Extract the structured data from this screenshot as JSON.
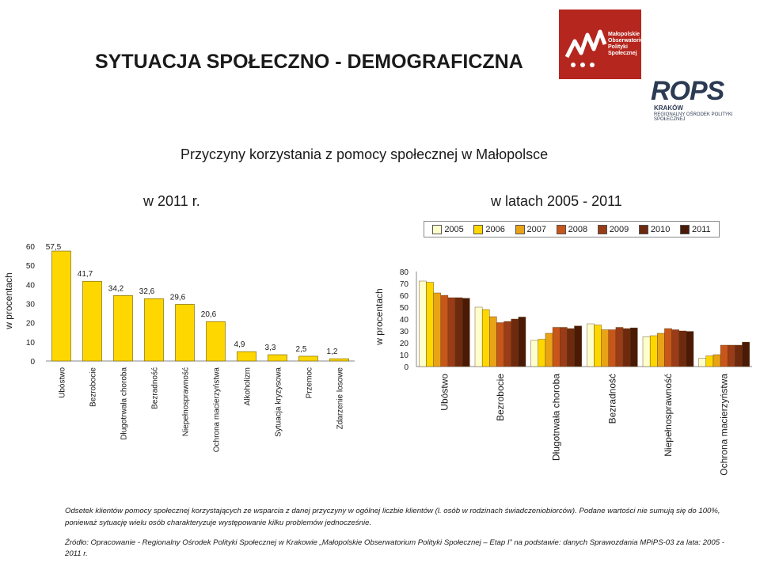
{
  "logo": {
    "org_lines": [
      "Małopolskie",
      "Obserwatorium",
      "Polityki",
      "Społecznej"
    ],
    "rops": "ROPS",
    "city": "KRAKÓW",
    "tagline": "REGIONALNY OŚRODEK POLITYKI SPOŁECZNEJ",
    "brand_color": "#b5261e",
    "text_color": "#2c3b53"
  },
  "title": "SYTUACJA SPOŁECZNO - DEMOGRAFICZNA",
  "subtitle": "Przyczyny korzystania z pomocy społecznej w Małopolsce",
  "left_header": "w 2011 r.",
  "right_header": "w latach 2005 - 2011",
  "legend": [
    {
      "label": "2005",
      "color": "#ffffcc"
    },
    {
      "label": "2006",
      "color": "#ffd700"
    },
    {
      "label": "2007",
      "color": "#e8a317"
    },
    {
      "label": "2008",
      "color": "#c8561a"
    },
    {
      "label": "2009",
      "color": "#9a3c17"
    },
    {
      "label": "2010",
      "color": "#6e2a0e"
    },
    {
      "label": "2011",
      "color": "#4a1a06"
    }
  ],
  "chart_data": [
    {
      "type": "bar",
      "categories": [
        "Ubóstwo",
        "Bezrobocie",
        "Długotrwała choroba",
        "Bezradność",
        "Niepełnosprawność",
        "Ochrona macierzyństwa",
        "Alkoholizm",
        "Sytuacja kryzysowa",
        "Przemoc",
        "Zdarzenie losowe"
      ],
      "values": [
        57.5,
        41.7,
        34.2,
        32.6,
        29.6,
        20.6,
        4.9,
        3.3,
        2.5,
        1.2
      ],
      "data_labels": [
        "57,5",
        "41,7",
        "34,2",
        "32,6",
        "29,6",
        "20,6",
        "4,9",
        "3,3",
        "2,5",
        "1,2"
      ],
      "ylabel": "w procentach",
      "ylim": [
        0,
        60
      ],
      "yticks": [
        0,
        10,
        20,
        30,
        40,
        50,
        60
      ],
      "bar_color": "#ffd700",
      "grid": false
    },
    {
      "type": "bar",
      "categories": [
        "Ubóstwo",
        "Bezrobocie",
        "Długotrwała choroba",
        "Bezradność",
        "Niepełnosprawność",
        "Ochrona macierzyństwa"
      ],
      "series": [
        {
          "name": "2005",
          "values": [
            72,
            50,
            22,
            36,
            25,
            7
          ]
        },
        {
          "name": "2006",
          "values": [
            71,
            48,
            23,
            35,
            26,
            9
          ]
        },
        {
          "name": "2007",
          "values": [
            62,
            42,
            28,
            31,
            28,
            10
          ]
        },
        {
          "name": "2008",
          "values": [
            60,
            37,
            33,
            31,
            32,
            18
          ]
        },
        {
          "name": "2009",
          "values": [
            58,
            38,
            33,
            33,
            31,
            18
          ]
        },
        {
          "name": "2010",
          "values": [
            58,
            40,
            32,
            32,
            30,
            18
          ]
        },
        {
          "name": "2011",
          "values": [
            57.5,
            41.7,
            34.2,
            32.6,
            29.6,
            20.6
          ]
        }
      ],
      "ylabel": "w procentach",
      "ylim": [
        0,
        80
      ],
      "yticks": [
        0,
        10,
        20,
        30,
        40,
        50,
        60,
        70,
        80
      ],
      "legend_position": "top",
      "grid": false
    }
  ],
  "footnote": "Odsetek klientów pomocy społecznej korzystających ze wsparcia z danej przyczyny w ogólnej liczbie klientów (l. osób w rodzinach świadczeniobiorców). Podane wartości nie sumują się do 100%, ponieważ sytuację wielu osób charakteryzuje występowanie kilku problemów jednocześnie.",
  "source": "Źródło: Opracowanie - Regionalny Ośrodek Polityki Społecznej w Krakowie „Małopolskie Obserwatorium Polityki Społecznej – Etap I” na podstawie: danych Sprawozdania MPiPS-03 za lata: 2005 - 2011 r."
}
